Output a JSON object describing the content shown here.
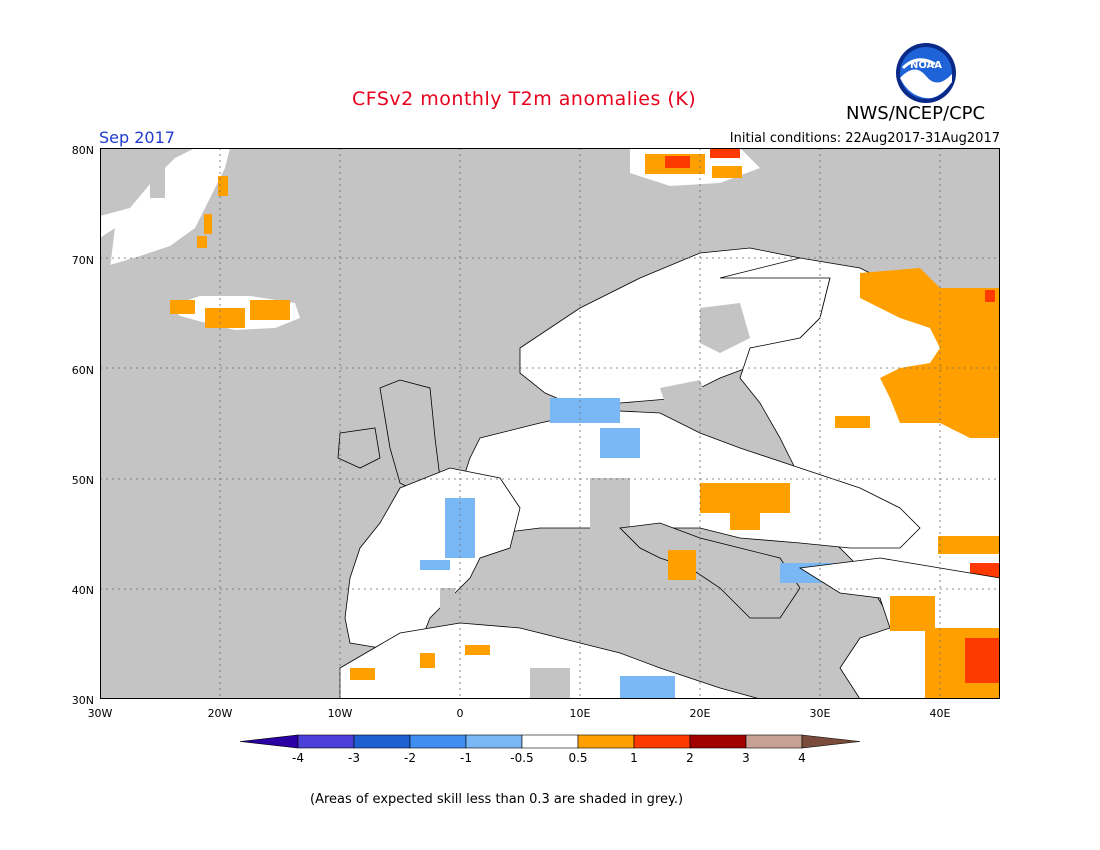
{
  "header": {
    "title": "CFSv2 monthly T2m anomalies (K)",
    "agency": "NWS/NCEP/CPC",
    "logo_text": "NOAA",
    "month": "Sep 2017",
    "initial_conditions": "Initial conditions: 22Aug2017-31Aug2017"
  },
  "map": {
    "region": "Europe",
    "lon_range": [
      -30,
      45
    ],
    "lat_range": [
      30,
      80
    ],
    "lat_labels": [
      "80N",
      "70N",
      "60N",
      "50N",
      "40N",
      "30N"
    ],
    "lon_labels": [
      "30W",
      "20W",
      "10W",
      "0",
      "10E",
      "20E",
      "30E",
      "40E"
    ],
    "grid": "dotted",
    "no_skill_color": "#c4c4c4",
    "ocean_color": "#c4c4c4",
    "land_neutral_color": "#ffffff"
  },
  "legend": {
    "bins": [
      {
        "label": "-4",
        "color": "#2a00a5"
      },
      {
        "label": "-3",
        "color": "#4a3fd6"
      },
      {
        "label": "-2",
        "color": "#1e5fd4"
      },
      {
        "label": "-1",
        "color": "#3f8ef0"
      },
      {
        "label": "-0.5",
        "color": "#79b8f4"
      },
      {
        "label": "0.5",
        "color": "#ffffff"
      },
      {
        "label": "1",
        "color": "#ffa000"
      },
      {
        "label": "2",
        "color": "#ff3a00"
      },
      {
        "label": "3",
        "color": "#a00000"
      },
      {
        "label": "4",
        "color": "#c7a193"
      },
      {
        "label": "",
        "color": "#7a4a3a"
      }
    ],
    "low_arrow_color": "#2a00a5",
    "high_arrow_color": "#7a4a3a"
  },
  "footnote": "(Areas of expected skill less than 0.3 are shaded in grey.)"
}
